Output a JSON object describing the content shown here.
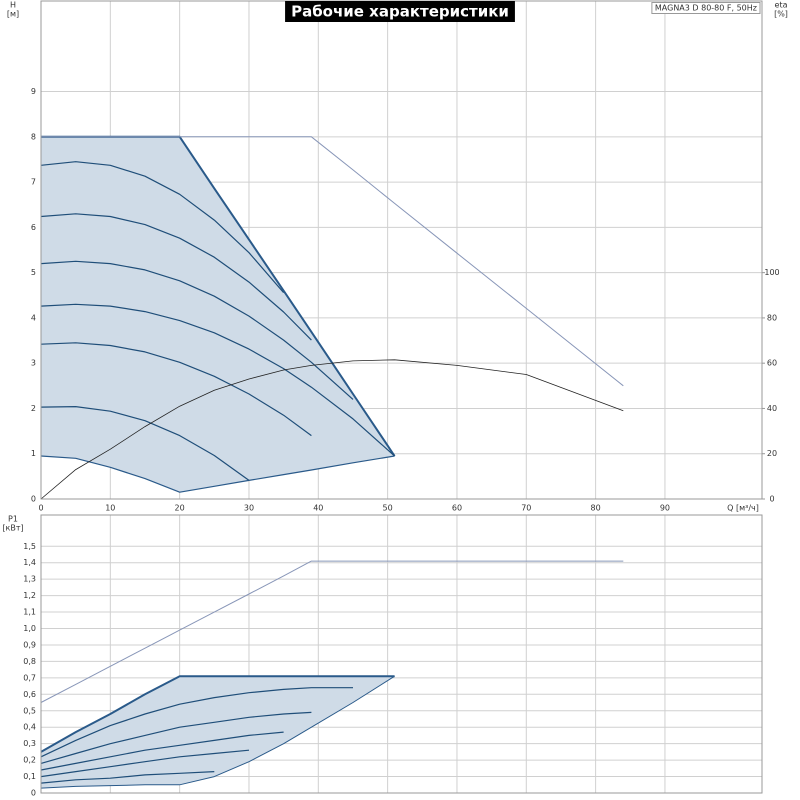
{
  "chart_data": [
    {
      "type": "line",
      "title": "Рабочие характеристики",
      "model": "MAGNA3 D 80-80 F, 50Hz",
      "ylabel": "H",
      "yunit": "[м]",
      "y2label": "eta",
      "y2unit": "[%]",
      "xlabel": "Q [м³/ч]",
      "xlim": [
        0,
        104
      ],
      "xticks": [
        0,
        10,
        20,
        30,
        40,
        50,
        60,
        70,
        80,
        90
      ],
      "ylim": [
        0,
        11
      ],
      "yticks": [
        0,
        1,
        2,
        3,
        4,
        5,
        6,
        7,
        8,
        9
      ],
      "y2lim": [
        0,
        220
      ],
      "y2ticks": [
        0,
        20,
        40,
        60,
        80,
        100
      ],
      "grid": true,
      "xtick_labels": true,
      "x": [
        0,
        5,
        10,
        15,
        20,
        25,
        30,
        35,
        39,
        45,
        51,
        60,
        70,
        84
      ],
      "series": [
        {
          "color": "#2a5a8a",
          "width": 2,
          "fill_between": "#cfdbe7",
          "values": [
            8,
            8,
            8,
            8,
            8,
            6.86,
            5.73,
            4.6,
            3.69,
            2.32,
            0.95,
            null,
            null,
            null
          ]
        },
        {
          "color": "#2a5a8a",
          "width": 1.2,
          "values": [
            0.95,
            0.9,
            0.7,
            0.45,
            0.15,
            0.28,
            0.41,
            0.54,
            0.64,
            0.8,
            0.95,
            null,
            null,
            null
          ]
        },
        {
          "color": "#1f4e79",
          "width": 1.2,
          "values": [
            7.37,
            7.45,
            7.37,
            7.13,
            6.73,
            6.16,
            5.44,
            4.56,
            null,
            null,
            null,
            null,
            null,
            null
          ]
        },
        {
          "color": "#1f4e79",
          "width": 1.2,
          "values": [
            6.24,
            6.3,
            6.24,
            6.06,
            5.76,
            5.34,
            4.79,
            4.13,
            3.51,
            null,
            null,
            null,
            null,
            null
          ]
        },
        {
          "color": "#1f4e79",
          "width": 1.2,
          "values": [
            5.2,
            5.25,
            5.2,
            5.06,
            4.82,
            4.48,
            4.04,
            3.51,
            3.02,
            2.2,
            null,
            null,
            null,
            null
          ]
        },
        {
          "color": "#1f4e79",
          "width": 1.2,
          "values": [
            4.26,
            4.3,
            4.26,
            4.14,
            3.94,
            3.67,
            3.31,
            2.88,
            2.47,
            1.77,
            0.95,
            null,
            null,
            null
          ]
        },
        {
          "color": "#1f4e79",
          "width": 1.2,
          "values": [
            3.42,
            3.45,
            3.39,
            3.25,
            3.02,
            2.71,
            2.32,
            1.85,
            1.4,
            null,
            null,
            null,
            null,
            null
          ]
        },
        {
          "color": "#1f4e79",
          "width": 1.2,
          "values": [
            2.03,
            2.04,
            1.94,
            1.73,
            1.4,
            0.96,
            0.41,
            null,
            null,
            null,
            null,
            null,
            null,
            null
          ]
        },
        {
          "color": "#8896b8",
          "width": 1,
          "values": [
            8,
            8,
            8,
            8,
            8,
            8,
            8,
            8,
            8,
            7.27,
            6.53,
            5.43,
            4.21,
            2.5
          ]
        },
        {
          "color": "#222222",
          "width": 0.8,
          "axis": "y2",
          "values": [
            0,
            13,
            22,
            32,
            41,
            48,
            53,
            57,
            59,
            61,
            61.5,
            59,
            55,
            39
          ]
        }
      ]
    },
    {
      "type": "line",
      "ylabel": "P1",
      "yunit": "[кВт]",
      "xlim": [
        0,
        104
      ],
      "xticks": [
        0,
        10,
        20,
        30,
        40,
        50,
        60,
        70,
        80,
        90
      ],
      "ylim": [
        0,
        1.69
      ],
      "yticks": [
        0,
        {
          "value": 0.1,
          "label": "0,1"
        },
        {
          "value": 0.2,
          "label": "0,2"
        },
        {
          "value": 0.3,
          "label": "0,3"
        },
        {
          "value": 0.4,
          "label": "0,4"
        },
        {
          "value": 0.5,
          "label": "0,5"
        },
        {
          "value": 0.6,
          "label": "0,6"
        },
        {
          "value": 0.7,
          "label": "0,7"
        },
        {
          "value": 0.8,
          "label": "0,8"
        },
        {
          "value": 0.9,
          "label": "0,9"
        },
        {
          "value": 1.0,
          "label": "1,0"
        },
        {
          "value": 1.1,
          "label": "1,1"
        },
        {
          "value": 1.2,
          "label": "1,2"
        },
        {
          "value": 1.3,
          "label": "1,3"
        },
        {
          "value": 1.4,
          "label": "1,4"
        },
        {
          "value": 1.5,
          "label": "1,5"
        }
      ],
      "grid": true,
      "xtick_labels": false,
      "x": [
        0,
        5,
        10,
        15,
        20,
        25,
        30,
        35,
        39,
        45,
        51,
        60,
        70,
        84
      ],
      "series": [
        {
          "color": "#2a5a8a",
          "width": 2,
          "fill_between": "#cfdbe7",
          "values": [
            0.25,
            0.37,
            0.48,
            0.6,
            0.71,
            0.71,
            0.71,
            0.71,
            0.71,
            0.71,
            0.71,
            null,
            null,
            null
          ]
        },
        {
          "color": "#2a5a8a",
          "width": 1,
          "values": [
            0.03,
            0.04,
            0.045,
            0.05,
            0.05,
            0.1,
            0.19,
            0.3,
            0.4,
            0.55,
            0.71,
            null,
            null,
            null
          ]
        },
        {
          "color": "#1f4e79",
          "width": 1.2,
          "values": [
            0.22,
            0.32,
            0.41,
            0.48,
            0.54,
            0.58,
            0.61,
            0.63,
            0.64,
            0.64,
            null,
            null,
            null,
            null
          ]
        },
        {
          "color": "#1f4e79",
          "width": 1.2,
          "values": [
            0.18,
            0.24,
            0.3,
            0.35,
            0.4,
            0.43,
            0.46,
            0.48,
            0.49,
            null,
            null,
            null,
            null,
            null
          ]
        },
        {
          "color": "#1f4e79",
          "width": 1.2,
          "values": [
            0.14,
            0.18,
            0.22,
            0.26,
            0.29,
            0.32,
            0.35,
            0.37,
            null,
            null,
            null,
            null,
            null,
            null
          ]
        },
        {
          "color": "#1f4e79",
          "width": 1.2,
          "values": [
            0.1,
            0.13,
            0.16,
            0.19,
            0.22,
            0.24,
            0.26,
            null,
            null,
            null,
            null,
            null,
            null,
            null
          ]
        },
        {
          "color": "#1f4e79",
          "width": 1.2,
          "values": [
            0.06,
            0.08,
            0.09,
            0.11,
            0.12,
            0.13,
            null,
            null,
            null,
            null,
            null,
            null,
            null,
            null
          ]
        },
        {
          "color": "#8896b8",
          "width": 1,
          "values": [
            0.55,
            0.66,
            0.77,
            0.88,
            0.99,
            1.1,
            1.21,
            1.32,
            1.41,
            1.41,
            1.41,
            1.41,
            1.41,
            1.41
          ]
        }
      ]
    }
  ]
}
